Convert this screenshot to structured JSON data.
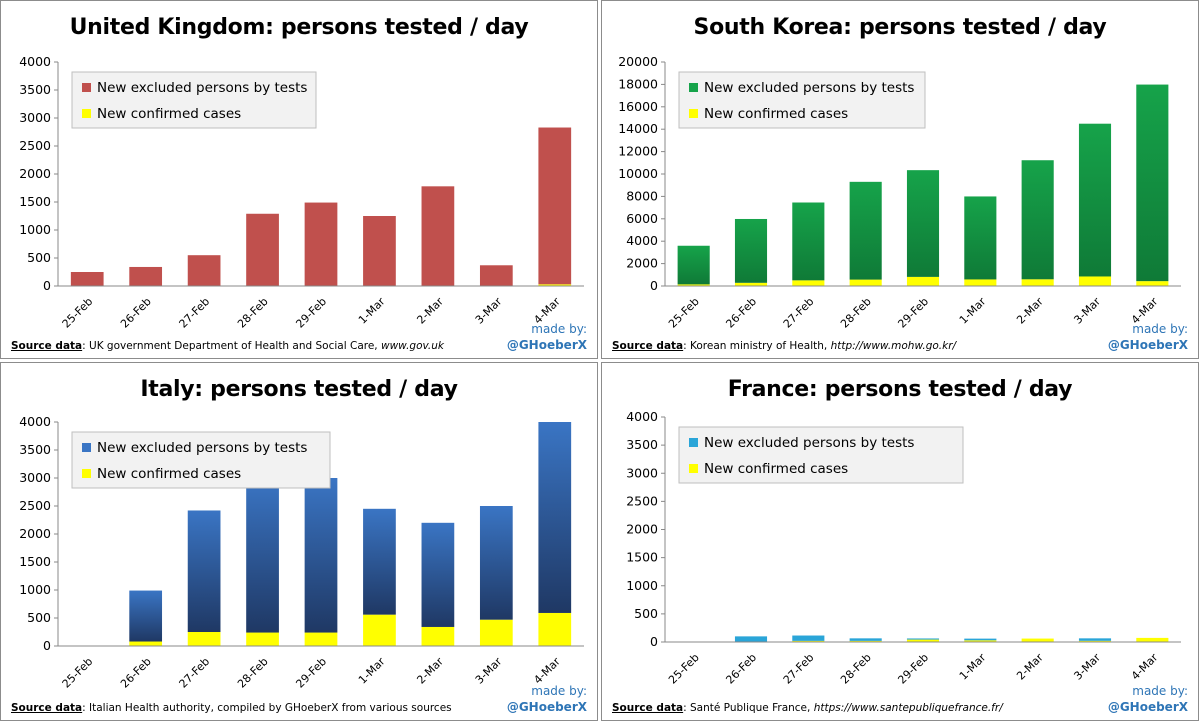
{
  "colors": {
    "uk_excluded": "#c0504d",
    "kr_excluded": "#16a34a",
    "it_excluded": "#3a75c4",
    "fr_excluded": "#2aa5d8",
    "confirmed": "#ffff00",
    "credit": "#2e75b6"
  },
  "legend": {
    "excluded": "New excluded persons by tests",
    "confirmed": "New confirmed cases"
  },
  "credit": {
    "made_by": "made by:",
    "handle": "@GHoeberX"
  },
  "panels": [
    {
      "source_label": "Source data",
      "source_text": ": UK government Department of Health and Social Care, ",
      "source_site": "www.gov.uk"
    },
    {
      "source_label": "Source data",
      "source_text": ": Korean ministry of Health, ",
      "source_site": "http://www.mohw.go.kr/"
    },
    {
      "source_label": "Source data",
      "source_text": ": Italian Health authority, compiled by GHoeberX from various sources",
      "source_site": ""
    },
    {
      "source_label": "Source data",
      "source_text": ": Santé Publique France, ",
      "source_site": "https://www.santepubliquefrance.fr/"
    }
  ],
  "chart_data": [
    {
      "type": "bar",
      "stacked": true,
      "title": "United Kingdom: persons tested / day",
      "categories": [
        "25-Feb",
        "26-Feb",
        "27-Feb",
        "28-Feb",
        "29-Feb",
        "1-Mar",
        "2-Mar",
        "3-Mar",
        "4-Mar"
      ],
      "series": [
        {
          "name": "New confirmed cases",
          "values": [
            0,
            0,
            0,
            0,
            0,
            0,
            0,
            0,
            30
          ]
        },
        {
          "name": "New excluded persons by tests",
          "values": [
            250,
            340,
            550,
            1290,
            1490,
            1250,
            1780,
            370,
            2800
          ]
        }
      ],
      "ylim": [
        0,
        4000
      ],
      "yticks": [
        0,
        500,
        1000,
        1500,
        2000,
        2500,
        3000,
        3500,
        4000
      ],
      "legend_position": "top-left",
      "grid": false
    },
    {
      "type": "bar",
      "stacked": true,
      "title": "South Korea: persons tested / day",
      "categories": [
        "25-Feb",
        "26-Feb",
        "27-Feb",
        "28-Feb",
        "29-Feb",
        "1-Mar",
        "2-Mar",
        "3-Mar",
        "4-Mar"
      ],
      "series": [
        {
          "name": "New confirmed cases",
          "values": [
            144,
            284,
            505,
            571,
            813,
            586,
            599,
            851,
            435
          ]
        },
        {
          "name": "New excluded persons by tests",
          "values": [
            3450,
            5700,
            6950,
            8730,
            9530,
            7410,
            10630,
            13640,
            17550
          ]
        }
      ],
      "ylim": [
        0,
        20000
      ],
      "yticks": [
        0,
        2000,
        4000,
        6000,
        8000,
        10000,
        12000,
        14000,
        16000,
        18000,
        20000
      ],
      "legend_position": "top-left",
      "grid": false
    },
    {
      "type": "bar",
      "stacked": true,
      "title": "Italy: persons tested / day",
      "categories": [
        "25-Feb",
        "26-Feb",
        "27-Feb",
        "28-Feb",
        "29-Feb",
        "1-Mar",
        "2-Mar",
        "3-Mar",
        "4-Mar"
      ],
      "series": [
        {
          "name": "New confirmed cases",
          "values": [
            0,
            80,
            250,
            240,
            240,
            560,
            340,
            470,
            590
          ]
        },
        {
          "name": "New excluded persons by tests",
          "values": [
            0,
            910,
            2170,
            2760,
            2760,
            1890,
            1860,
            2030,
            3410
          ]
        }
      ],
      "ylim": [
        0,
        4000
      ],
      "yticks": [
        0,
        500,
        1000,
        1500,
        2000,
        2500,
        3000,
        3500,
        4000
      ],
      "legend_position": "top-left",
      "grid": false
    },
    {
      "type": "bar",
      "stacked": true,
      "title": "France: persons tested / day",
      "categories": [
        "25-Feb",
        "26-Feb",
        "27-Feb",
        "28-Feb",
        "29-Feb",
        "1-Mar",
        "2-Mar",
        "3-Mar",
        "4-Mar"
      ],
      "series": [
        {
          "name": "New confirmed cases",
          "values": [
            0,
            4,
            20,
            20,
            43,
            30,
            61,
            21,
            73
          ]
        },
        {
          "name": "New excluded persons by tests",
          "values": [
            0,
            96,
            95,
            45,
            20,
            30,
            0,
            44,
            0
          ]
        }
      ],
      "ylim": [
        0,
        4000
      ],
      "yticks": [
        0,
        500,
        1000,
        1500,
        2000,
        2500,
        3000,
        3500,
        4000
      ],
      "legend_position": "top-left",
      "grid": false
    }
  ]
}
